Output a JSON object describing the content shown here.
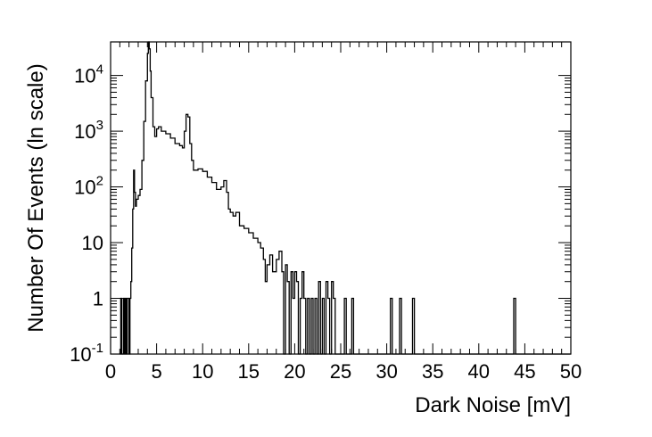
{
  "chart_data": {
    "type": "histogram",
    "xlabel": "Dark Noise [mV]",
    "ylabel": "Number Of Events (ln scale)",
    "xlim": [
      0,
      50
    ],
    "ylim": [
      0.1,
      40000
    ],
    "yscale": "log",
    "xticks": [
      "0",
      "5",
      "10",
      "15",
      "20",
      "25",
      "30",
      "35",
      "40",
      "45",
      "50"
    ],
    "yticks": [
      {
        "value": 0.1,
        "base": "10",
        "exp": "-1"
      },
      {
        "value": 1,
        "base": "1",
        "exp": ""
      },
      {
        "value": 10,
        "base": "10",
        "exp": ""
      },
      {
        "value": 100,
        "base": "10",
        "exp": "2"
      },
      {
        "value": 1000,
        "base": "10",
        "exp": "3"
      },
      {
        "value": 10000,
        "base": "10",
        "exp": "4"
      }
    ],
    "series": [
      {
        "color": "#000000",
        "points": [
          [
            1.0,
            0.1
          ],
          [
            1.1,
            1
          ],
          [
            1.2,
            0.1
          ],
          [
            1.4,
            1
          ],
          [
            1.5,
            0.1
          ],
          [
            1.6,
            1
          ],
          [
            1.7,
            0.1
          ],
          [
            1.8,
            1
          ],
          [
            2.0,
            0.1
          ],
          [
            2.1,
            1
          ],
          [
            2.2,
            2
          ],
          [
            2.3,
            8
          ],
          [
            2.4,
            40
          ],
          [
            2.5,
            200
          ],
          [
            2.6,
            80
          ],
          [
            2.7,
            45
          ],
          [
            2.8,
            60
          ],
          [
            2.9,
            60
          ],
          [
            3.0,
            70
          ],
          [
            3.2,
            90
          ],
          [
            3.4,
            300
          ],
          [
            3.6,
            1500
          ],
          [
            3.8,
            8000
          ],
          [
            4.0,
            25000
          ],
          [
            4.1,
            40000
          ],
          [
            4.2,
            30000
          ],
          [
            4.3,
            12000
          ],
          [
            4.4,
            4000
          ],
          [
            4.6,
            1200
          ],
          [
            4.8,
            800
          ],
          [
            5.0,
            1100
          ],
          [
            5.2,
            1200
          ],
          [
            5.5,
            1000
          ],
          [
            6.0,
            900
          ],
          [
            6.5,
            750
          ],
          [
            7.0,
            600
          ],
          [
            7.5,
            550
          ],
          [
            7.8,
            500
          ],
          [
            8.0,
            1000
          ],
          [
            8.2,
            2000
          ],
          [
            8.4,
            1800
          ],
          [
            8.6,
            600
          ],
          [
            8.8,
            300
          ],
          [
            9.0,
            200
          ],
          [
            9.5,
            210
          ],
          [
            10.0,
            190
          ],
          [
            10.5,
            150
          ],
          [
            11.0,
            120
          ],
          [
            11.5,
            90
          ],
          [
            12.0,
            100
          ],
          [
            12.3,
            130
          ],
          [
            12.6,
            80
          ],
          [
            12.8,
            40
          ],
          [
            13.0,
            35
          ],
          [
            13.3,
            30
          ],
          [
            13.6,
            35
          ],
          [
            14.0,
            20
          ],
          [
            14.5,
            18
          ],
          [
            15.0,
            15
          ],
          [
            15.5,
            12
          ],
          [
            16.0,
            10
          ],
          [
            16.3,
            8
          ],
          [
            16.6,
            5
          ],
          [
            16.8,
            2
          ],
          [
            17.0,
            4
          ],
          [
            17.3,
            6
          ],
          [
            17.6,
            3
          ],
          [
            18.0,
            5
          ],
          [
            18.3,
            7
          ],
          [
            18.6,
            3
          ],
          [
            18.8,
            0.1
          ],
          [
            19.0,
            4
          ],
          [
            19.2,
            2
          ],
          [
            19.4,
            0.1
          ],
          [
            19.6,
            3
          ],
          [
            19.8,
            1
          ],
          [
            20.0,
            3
          ],
          [
            20.2,
            2
          ],
          [
            20.4,
            0.1
          ],
          [
            20.6,
            1
          ],
          [
            20.8,
            3
          ],
          [
            21.0,
            1
          ],
          [
            21.2,
            0.1
          ],
          [
            21.4,
            1
          ],
          [
            21.6,
            0.1
          ],
          [
            21.8,
            1
          ],
          [
            22.0,
            0.1
          ],
          [
            22.2,
            1
          ],
          [
            22.4,
            0.1
          ],
          [
            22.6,
            2
          ],
          [
            22.8,
            0.1
          ],
          [
            23.0,
            1
          ],
          [
            23.2,
            0.1
          ],
          [
            23.4,
            2
          ],
          [
            23.6,
            1
          ],
          [
            23.8,
            0.1
          ],
          [
            24.0,
            2
          ],
          [
            24.2,
            1
          ],
          [
            24.4,
            0.1
          ],
          [
            25.4,
            1
          ],
          [
            25.6,
            0.1
          ],
          [
            26.2,
            1
          ],
          [
            26.4,
            0.1
          ],
          [
            30.4,
            1
          ],
          [
            30.6,
            0.1
          ],
          [
            31.4,
            1
          ],
          [
            31.6,
            0.1
          ],
          [
            32.8,
            1
          ],
          [
            33.0,
            0.1
          ],
          [
            43.8,
            1
          ],
          [
            44.0,
            0.1
          ],
          [
            50.0,
            0.1
          ]
        ]
      }
    ]
  }
}
